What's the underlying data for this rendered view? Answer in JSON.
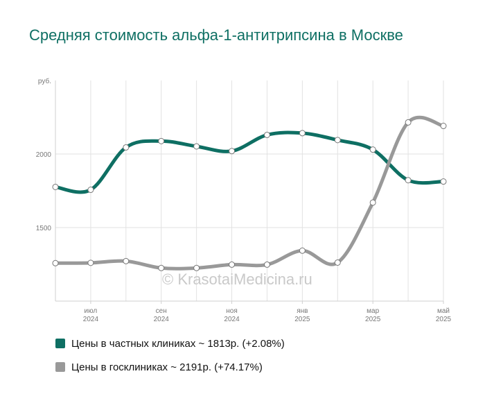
{
  "title": "Средняя стоимость альфа-1-антитрипсина в Москве",
  "watermark": "© KrasotaiMedicina.ru",
  "colors": {
    "private": "#0e6f63",
    "public": "#999999",
    "title": "#0e6f63"
  },
  "legend": {
    "private_label": "Цены в частных клиниках ~ 1813р. (+2.08%)",
    "public_label": "Цены в госклиниках ~ 2191р. (+74.17%)"
  },
  "chart_data": {
    "type": "line",
    "title": "Средняя стоимость альфа-1-антитрипсина в Москве",
    "ylabel": "руб.",
    "ylim": [
      1000,
      2500
    ],
    "yticks": [
      1500,
      2000
    ],
    "grid": true,
    "legend_position": "bottom-left",
    "x_ticks": [
      {
        "month": "июл",
        "year": "2024"
      },
      {
        "month": "сен",
        "year": "2024"
      },
      {
        "month": "ноя",
        "year": "2024"
      },
      {
        "month": "янв",
        "year": "2025"
      },
      {
        "month": "мар",
        "year": "2025"
      },
      {
        "month": "май",
        "year": "2025"
      }
    ],
    "x": [
      "2024-06",
      "2024-07",
      "2024-08",
      "2024-09",
      "2024-10",
      "2024-11",
      "2024-12",
      "2025-01",
      "2025-02",
      "2025-03",
      "2025-04",
      "2025-05"
    ],
    "series": [
      {
        "name": "Цены в частных клиниках ~ 1813р. (+2.08%)",
        "color": "#0e6f63",
        "values": [
          1776,
          1757,
          2045,
          2088,
          2052,
          2020,
          2130,
          2142,
          2095,
          2030,
          1822,
          1813
        ]
      },
      {
        "name": "Цены в госклиниках ~ 2191р. (+74.17%)",
        "color": "#999999",
        "values": [
          1258,
          1260,
          1272,
          1225,
          1225,
          1248,
          1248,
          1343,
          1262,
          1670,
          2215,
          2191
        ]
      }
    ]
  }
}
